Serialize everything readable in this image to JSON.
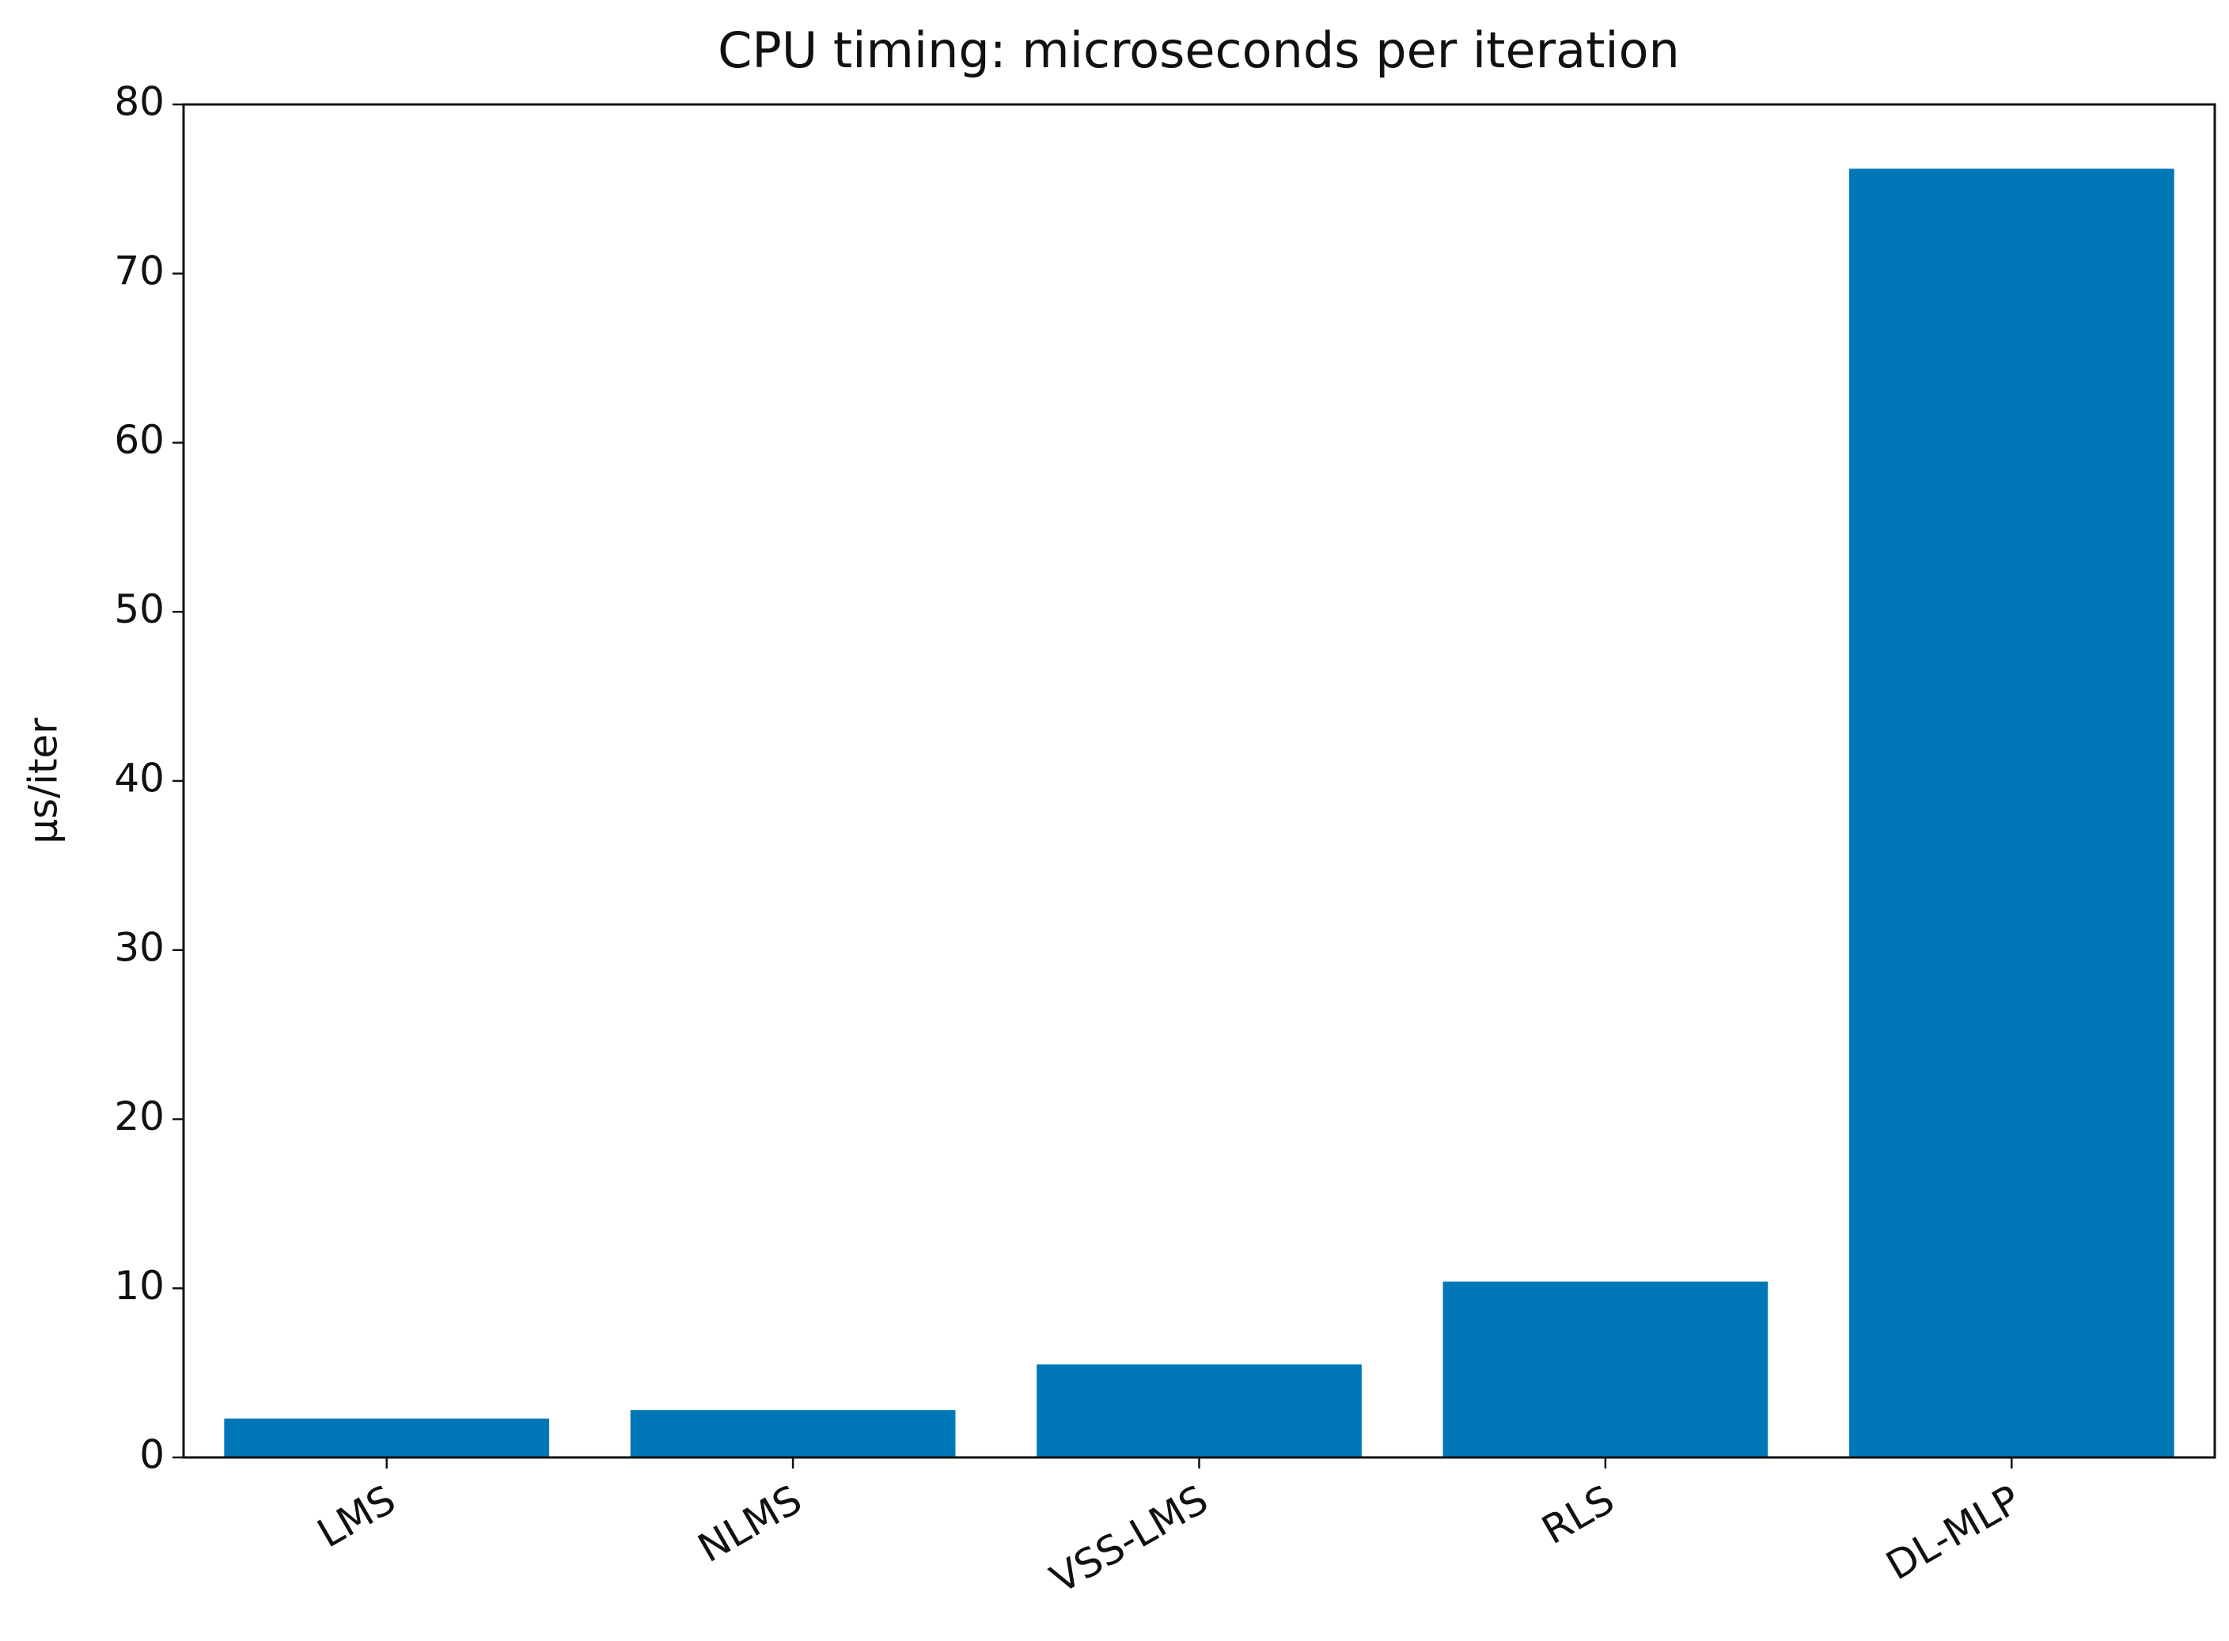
{
  "chart_data": {
    "type": "bar",
    "title": "CPU timing: microseconds per iteration",
    "y_label": "µs/iter",
    "categories": [
      "LMS",
      "NLMS",
      "VSS-LMS",
      "RLS",
      "DL-MLP"
    ],
    "values": [
      2.3,
      2.8,
      5.5,
      10.4,
      76.2
    ],
    "color": "#0077b6",
    "ylim": [
      0,
      80
    ],
    "yticks": [
      0,
      10,
      20,
      30,
      40,
      50,
      60,
      70,
      80
    ],
    "grid": false
  }
}
